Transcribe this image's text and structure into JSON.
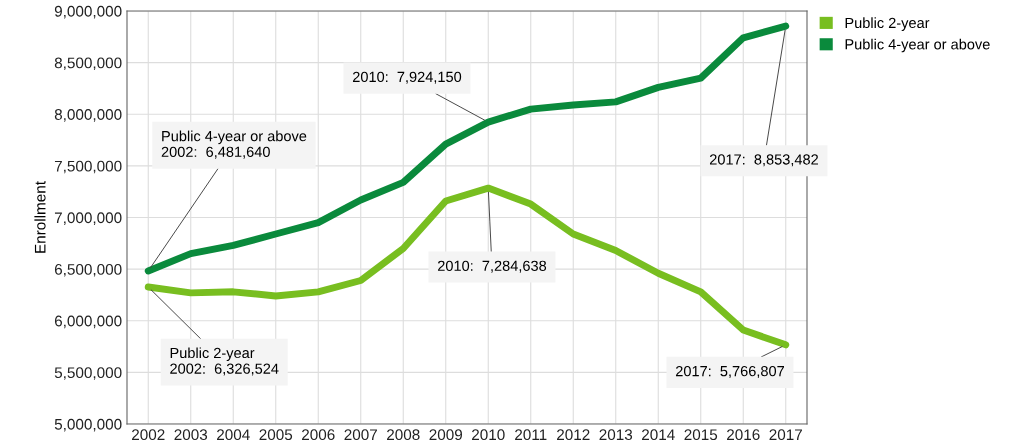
{
  "chart_data": {
    "type": "line",
    "ylabel": "Enrollment",
    "categories": [
      "2002",
      "2003",
      "2004",
      "2005",
      "2006",
      "2007",
      "2008",
      "2009",
      "2010",
      "2011",
      "2012",
      "2013",
      "2014",
      "2015",
      "2016",
      "2017"
    ],
    "series": [
      {
        "name": "Public 2-year",
        "color": "#78be20",
        "values": [
          6326524,
          6270000,
          6280000,
          6240000,
          6280000,
          6390000,
          6700000,
          7160000,
          7284638,
          7130000,
          6840000,
          6680000,
          6460000,
          6280000,
          5910000,
          5766807
        ]
      },
      {
        "name": "Public 4-year or above",
        "color": "#0a8a3c",
        "values": [
          6481640,
          6650000,
          6730000,
          6840000,
          6950000,
          7170000,
          7340000,
          7710000,
          7924150,
          8050000,
          8090000,
          8120000,
          8260000,
          8350000,
          8740000,
          8853482
        ]
      }
    ],
    "ylim": [
      5000000,
      9000000
    ],
    "yticks": [
      {
        "value": 5000000,
        "label": "5,000,000"
      },
      {
        "value": 5500000,
        "label": "5,500,000"
      },
      {
        "value": 6000000,
        "label": "6,000,000"
      },
      {
        "value": 6500000,
        "label": "6,500,000"
      },
      {
        "value": 7000000,
        "label": "7,000,000"
      },
      {
        "value": 7500000,
        "label": "7,500,000"
      },
      {
        "value": 8000000,
        "label": "8,000,000"
      },
      {
        "value": 8500000,
        "label": "8,500,000"
      },
      {
        "value": 9000000,
        "label": "9,000,000"
      }
    ],
    "grid": true,
    "legend": "top right",
    "marker": "none",
    "line_style": "solid",
    "annotations": [
      {
        "text": "Public 4-year or above\n2002:  6,481,640",
        "x": "2002",
        "y": 6481640
      },
      {
        "text": "2010:  7,924,150",
        "x": "2010",
        "y": 7924150
      },
      {
        "text": "2017:  8,853,482",
        "x": "2017",
        "y": 8853482
      },
      {
        "text": "2010:  7,284,638",
        "x": "2010",
        "y": 7284638
      },
      {
        "text": "Public 2-year\n2002:  6,326,524",
        "x": "2002",
        "y": 6326524
      },
      {
        "text": "2017:  5,766,807",
        "x": "2017",
        "y": 5766807
      }
    ]
  }
}
